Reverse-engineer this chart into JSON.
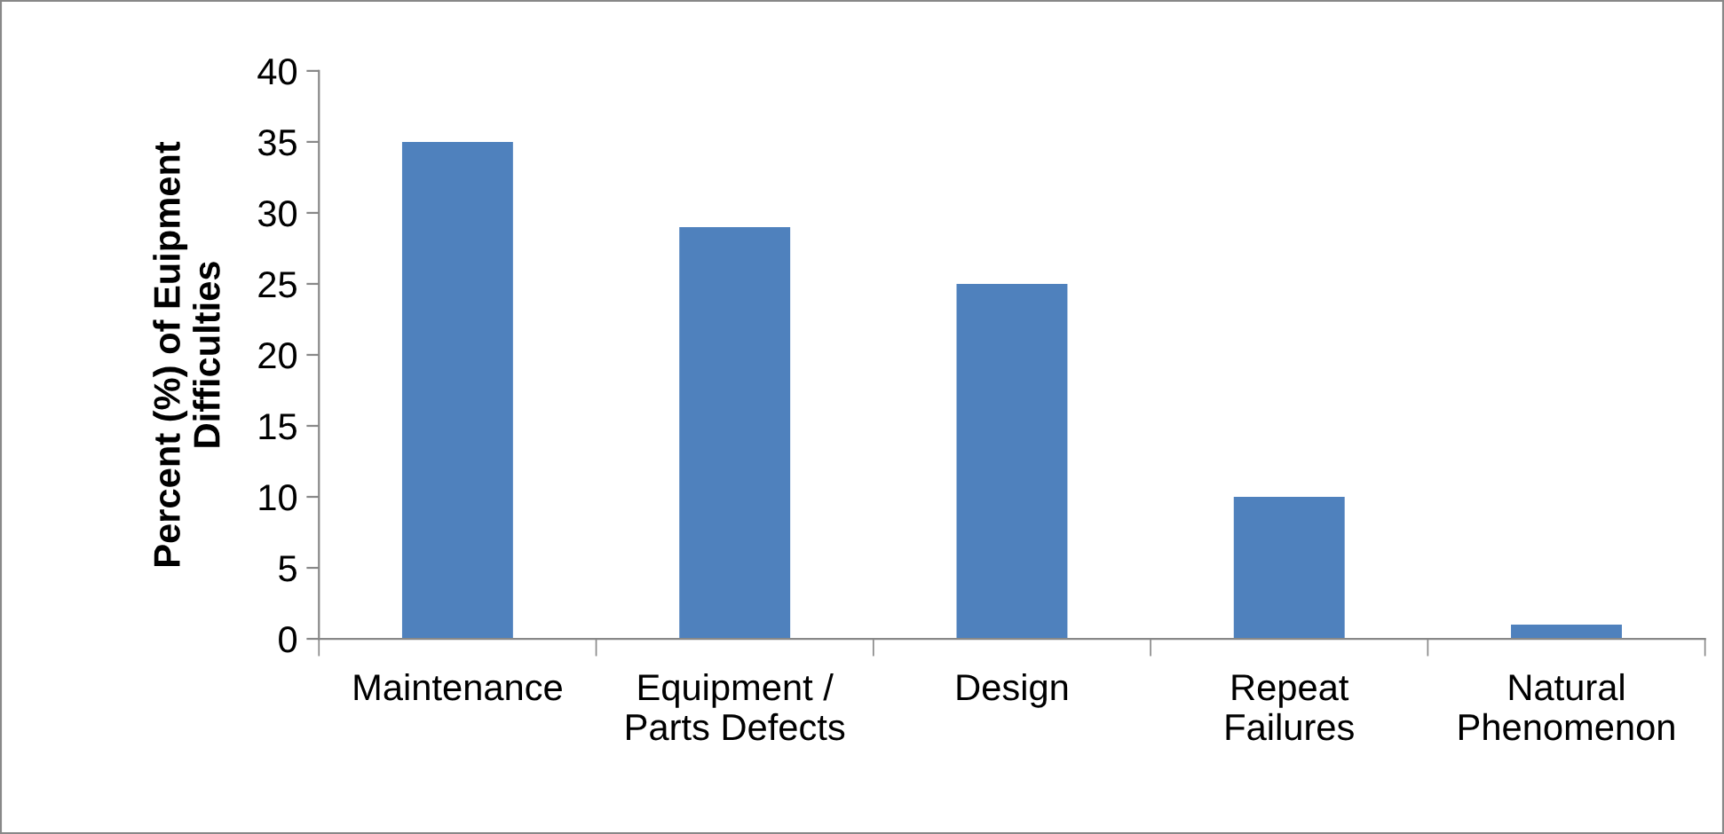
{
  "chart_data": {
    "type": "bar",
    "ylabel": "Percent (%) of Euipment\nDifficulties",
    "categories": [
      "Maintenance",
      "Equipment /\nParts Defects",
      "Design",
      "Repeat\nFailures",
      "Natural\nPhenomenon"
    ],
    "values": [
      35,
      29,
      25,
      10,
      1
    ],
    "color": "#4f81bd",
    "ylim": [
      0,
      40
    ],
    "yticks": [
      0,
      5,
      10,
      15,
      20,
      25,
      30,
      35,
      40
    ],
    "grid": false,
    "legend": false
  }
}
